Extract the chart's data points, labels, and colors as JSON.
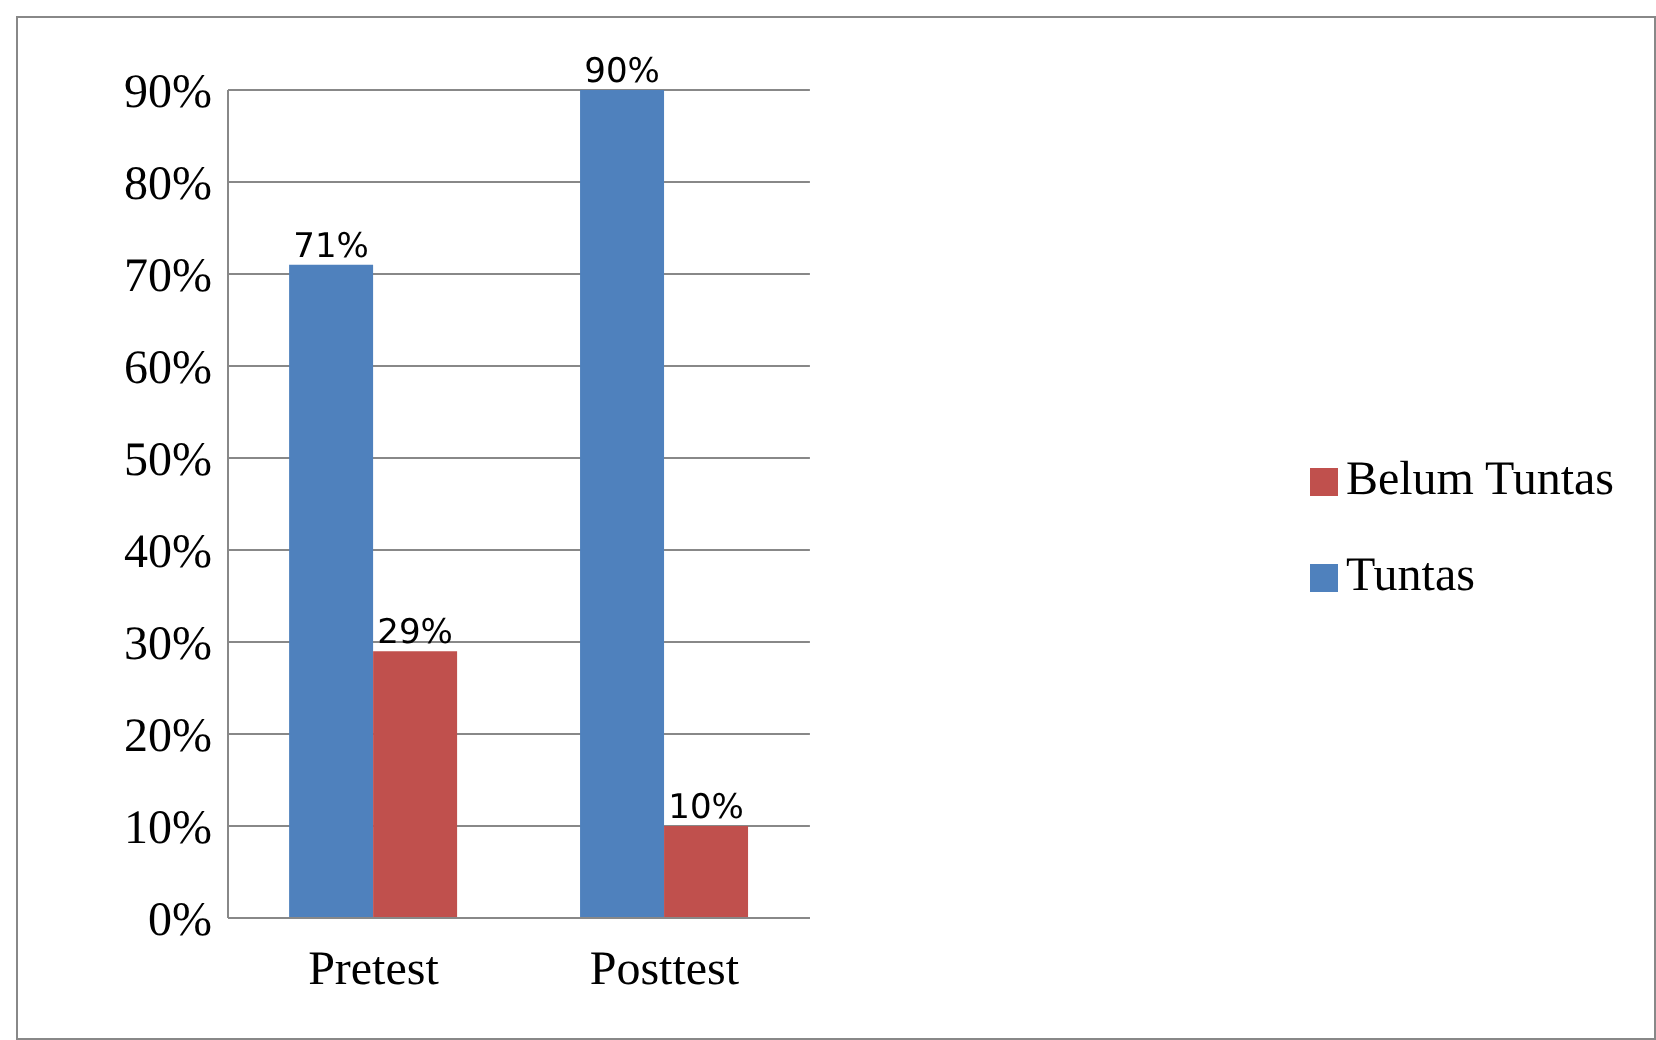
{
  "chart_data": {
    "type": "bar",
    "categories": [
      "Pretest",
      "Posttest"
    ],
    "series": [
      {
        "name": "Tuntas",
        "color": "#4f81bd",
        "values": [
          71,
          90
        ],
        "value_labels": [
          "71%",
          "90%"
        ]
      },
      {
        "name": "Belum Tuntas",
        "color": "#c0504d",
        "values": [
          29,
          10
        ],
        "value_labels": [
          "29%",
          "10%"
        ]
      }
    ],
    "ylim": [
      0,
      90
    ],
    "yticks": [
      {
        "value": 0,
        "label": "0%"
      },
      {
        "value": 10,
        "label": "10%"
      },
      {
        "value": 20,
        "label": "20%"
      },
      {
        "value": 30,
        "label": "30%"
      },
      {
        "value": 40,
        "label": "40%"
      },
      {
        "value": 50,
        "label": "50%"
      },
      {
        "value": 60,
        "label": "60%"
      },
      {
        "value": 70,
        "label": "70%"
      },
      {
        "value": 80,
        "label": "80%"
      },
      {
        "value": 90,
        "label": "90%"
      }
    ],
    "grid": "y",
    "legend": "right"
  }
}
